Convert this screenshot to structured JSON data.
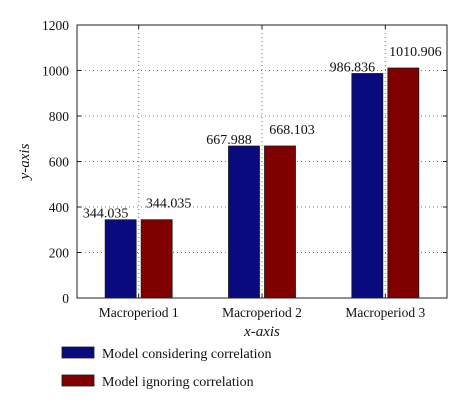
{
  "chart_data": {
    "type": "bar",
    "title": "",
    "xlabel": "x-axis",
    "ylabel": "y-axis",
    "categories": [
      "Macroperiod 1",
      "Macroperiod 2",
      "Macroperiod 3"
    ],
    "series": [
      {
        "name": "Model considering correlation",
        "color": "#0a0a7f",
        "values": [
          344.035,
          667.988,
          986.836
        ]
      },
      {
        "name": "Model ignoring correlation",
        "color": "#800000",
        "values": [
          344.035,
          668.103,
          1010.906
        ]
      }
    ],
    "data_labels": [
      [
        "344.035",
        "667.988",
        "986.836"
      ],
      [
        "344.035",
        "668.103",
        "1010.906"
      ]
    ],
    "ylim": [
      0,
      1200
    ],
    "yticks": [
      0,
      200,
      400,
      600,
      800,
      1000,
      1200
    ],
    "grid": true,
    "legend_position": "bottom-left, below plot"
  }
}
